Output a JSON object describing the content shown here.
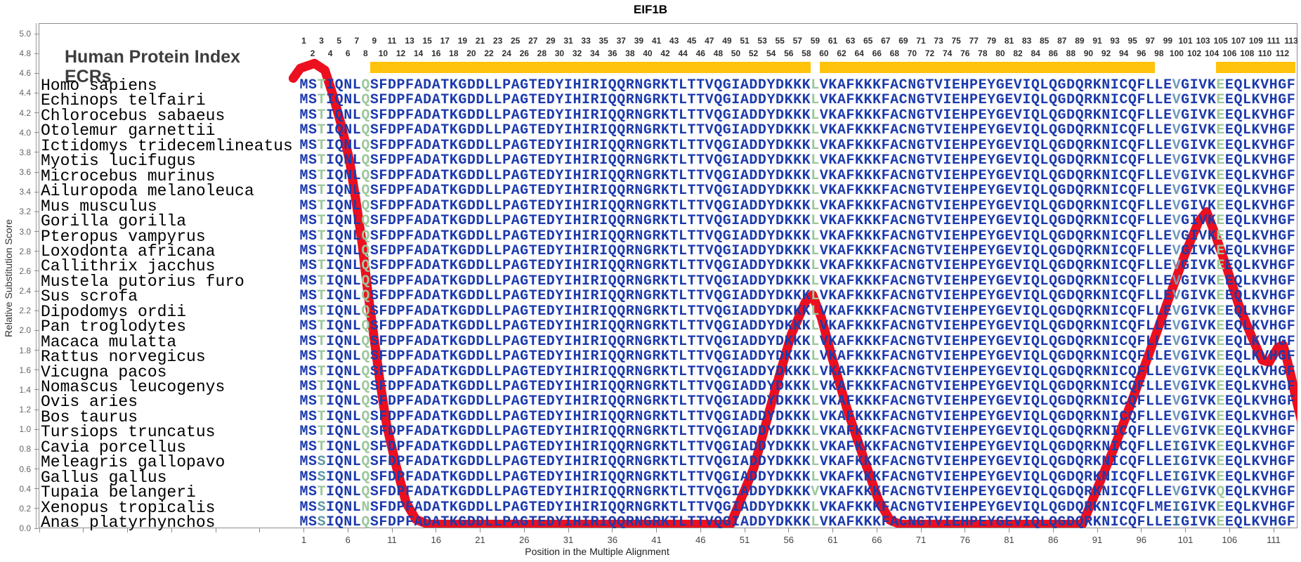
{
  "title": "EIF1B",
  "header": {
    "protein_index_label": "Human Protein Index",
    "ecrs_label": "ECRs"
  },
  "y_axis": {
    "label": "Relative Substitution Score",
    "min": 0.0,
    "max": 5.0,
    "tick_step": 0.2
  },
  "x_axis": {
    "label": "Position in the Multiple Alignment",
    "tick_first": 1,
    "tick_step": 5,
    "tick_last": 111,
    "leading_unlabeled_ticks": 6
  },
  "top_index": {
    "min": 1,
    "max": 113
  },
  "ecr_regions": [
    {
      "start": 9,
      "end": 58
    },
    {
      "start": 60,
      "end": 97
    },
    {
      "start": 105,
      "end": 113
    }
  ],
  "colors": {
    "conserved": "#1c3aac",
    "variable": "#9cc79c",
    "semi": "#7299bd",
    "semi_dark": "#3f6f97",
    "teal": "#5d98a2",
    "curve": "#ec0f1f",
    "ecr": "#ffc30d"
  },
  "alignment": {
    "length": 113,
    "reference": "MSTIQNLQSFDPFADATKGDDLLPAGTEDYIHIRIQQRNGRKTLTTVQGIADDYDKKKLVKAFKKKFACNGTVIEHPEYGEVIQLQGDQRKNICQFLLEVGIVKEEQLKVHGF",
    "column_classes": {
      "3": "variable",
      "8": "variable",
      "59": "variable",
      "100": "semi",
      "105": "variable"
    },
    "char_color_overrides": {
      "3:S": "teal",
      "100:I": "semi_dark"
    },
    "species": [
      {
        "name": "Homo sapiens",
        "variants": {}
      },
      {
        "name": "Echinops telfairi",
        "variants": {}
      },
      {
        "name": "Chlorocebus sabaeus",
        "variants": {}
      },
      {
        "name": "Otolemur garnettii",
        "variants": {}
      },
      {
        "name": "Ictidomys tridecemlineatus",
        "variants": {}
      },
      {
        "name": "Myotis lucifugus",
        "variants": {}
      },
      {
        "name": "Microcebus murinus",
        "variants": {}
      },
      {
        "name": "Ailuropoda melanoleuca",
        "variants": {}
      },
      {
        "name": "Mus musculus",
        "variants": {}
      },
      {
        "name": "Gorilla gorilla",
        "variants": {}
      },
      {
        "name": "Pteropus vampyrus",
        "variants": {}
      },
      {
        "name": "Loxodonta africana",
        "variants": {}
      },
      {
        "name": "Callithrix jacchus",
        "variants": {}
      },
      {
        "name": "Mustela putorius furo",
        "variants": {}
      },
      {
        "name": "Sus scrofa",
        "variants": {}
      },
      {
        "name": "Dipodomys ordii",
        "variants": {}
      },
      {
        "name": "Pan troglodytes",
        "variants": {}
      },
      {
        "name": "Macaca mulatta",
        "variants": {}
      },
      {
        "name": "Rattus norvegicus",
        "variants": {}
      },
      {
        "name": "Vicugna pacos",
        "variants": {}
      },
      {
        "name": "Nomascus leucogenys",
        "variants": {}
      },
      {
        "name": "Ovis aries",
        "variants": {}
      },
      {
        "name": "Bos taurus",
        "variants": {}
      },
      {
        "name": "Tursiops truncatus",
        "variants": {}
      },
      {
        "name": "Cavia porcellus",
        "variants": {
          "100": "I"
        }
      },
      {
        "name": "Meleagris gallopavo",
        "variants": {
          "3": "S",
          "100": "I"
        }
      },
      {
        "name": "Gallus gallus",
        "variants": {
          "3": "S",
          "100": "I"
        }
      },
      {
        "name": "Tupaia belangeri",
        "variants": {
          "59": "V",
          "105": "Q"
        }
      },
      {
        "name": "Xenopus tropicalis",
        "variants": {
          "3": "S",
          "8": "N",
          "98": "M",
          "100": "I"
        }
      },
      {
        "name": "Anas platyrhynchos",
        "variants": {
          "3": "S",
          "100": "I"
        }
      }
    ]
  },
  "chart_data": {
    "type": "line",
    "title": "EIF1B",
    "xlabel": "Position in the Multiple Alignment",
    "ylabel": "Relative Substitution Score",
    "xlim": [
      1,
      113
    ],
    "ylim": [
      0.0,
      5.0
    ],
    "grid": false,
    "legend_position": "none",
    "series": [
      {
        "name": "relative_substitution_score",
        "points": [
          [
            -0.2,
            4.55
          ],
          [
            0.6,
            4.65
          ],
          [
            2.2,
            4.7
          ],
          [
            3.4,
            4.63
          ],
          [
            4.3,
            4.38
          ],
          [
            5.3,
            4.06
          ],
          [
            6.2,
            3.71
          ],
          [
            6.9,
            3.32
          ],
          [
            7.6,
            2.89
          ],
          [
            8.2,
            2.43
          ],
          [
            8.9,
            1.97
          ],
          [
            9.6,
            1.51
          ],
          [
            10.4,
            1.04
          ],
          [
            11.5,
            0.62
          ],
          [
            12.6,
            0.26
          ],
          [
            13.7,
            0.09
          ],
          [
            15.1,
            0.04
          ],
          [
            49.4,
            0.04
          ],
          [
            52.0,
            0.6
          ],
          [
            54.4,
            1.38
          ],
          [
            56.3,
            1.96
          ],
          [
            57.9,
            2.29
          ],
          [
            58.7,
            2.36
          ],
          [
            59.7,
            2.13
          ],
          [
            61.0,
            1.7
          ],
          [
            62.6,
            1.21
          ],
          [
            64.5,
            0.71
          ],
          [
            66.2,
            0.28
          ],
          [
            67.5,
            0.08
          ],
          [
            68.7,
            0.04
          ],
          [
            89.3,
            0.04
          ],
          [
            90.9,
            0.38
          ],
          [
            92.9,
            0.81
          ],
          [
            94.9,
            1.28
          ],
          [
            96.9,
            1.77
          ],
          [
            98.9,
            2.27
          ],
          [
            100.9,
            2.76
          ],
          [
            102.5,
            3.1
          ],
          [
            103.4,
            3.2
          ],
          [
            104.3,
            2.99
          ],
          [
            105.7,
            2.63
          ],
          [
            107.0,
            2.27
          ],
          [
            108.5,
            1.94
          ],
          [
            109.7,
            1.7
          ],
          [
            110.5,
            1.68
          ],
          [
            111.5,
            1.83
          ],
          [
            112.1,
            1.85
          ],
          [
            112.9,
            1.57
          ],
          [
            113.6,
            1.29
          ],
          [
            114.2,
            1.07
          ]
        ]
      }
    ],
    "annotations": {
      "ecr_regions_positions": [
        [
          9,
          58
        ],
        [
          60,
          97
        ],
        [
          105,
          113
        ]
      ]
    }
  }
}
